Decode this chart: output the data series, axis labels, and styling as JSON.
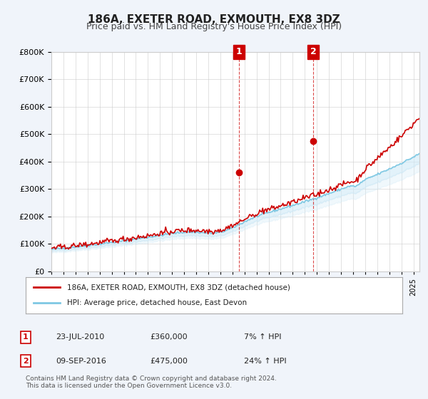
{
  "title": "186A, EXETER ROAD, EXMOUTH, EX8 3DZ",
  "subtitle": "Price paid vs. HM Land Registry's House Price Index (HPI)",
  "ylabel_ticks": [
    "£0",
    "£100K",
    "£200K",
    "£300K",
    "£400K",
    "£500K",
    "£600K",
    "£700K",
    "£800K"
  ],
  "ylim": [
    0,
    800000
  ],
  "xlim_start": 1995.0,
  "xlim_end": 2025.5,
  "sale1_x": 2010.55,
  "sale1_y": 360000,
  "sale1_label": "1",
  "sale2_x": 2016.69,
  "sale2_y": 475000,
  "sale2_label": "2",
  "vline1_x": 2010.55,
  "vline2_x": 2016.69,
  "property_color": "#cc0000",
  "hpi_color": "#7ec8e3",
  "hpi_fill_color": "#d0eaf7",
  "marker_fill": "#cc0000",
  "label_box_color": "#cc0000",
  "legend_property": "186A, EXETER ROAD, EXMOUTH, EX8 3DZ (detached house)",
  "legend_hpi": "HPI: Average price, detached house, East Devon",
  "annotation1_date": "23-JUL-2010",
  "annotation1_price": "£360,000",
  "annotation1_hpi": "7% ↑ HPI",
  "annotation2_date": "09-SEP-2016",
  "annotation2_price": "£475,000",
  "annotation2_hpi": "24% ↑ HPI",
  "footnote": "Contains HM Land Registry data © Crown copyright and database right 2024.\nThis data is licensed under the Open Government Licence v3.0.",
  "background_color": "#f0f4fa",
  "plot_bg_color": "#ffffff",
  "grid_color": "#cccccc"
}
